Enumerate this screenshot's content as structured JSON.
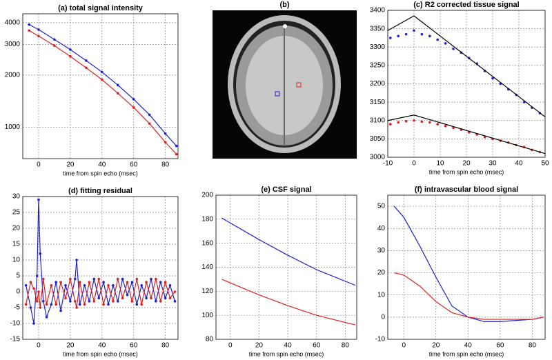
{
  "chart_data": [
    {
      "type": "line",
      "title": "(a) total signal intensity",
      "xlabel": "time from spin echo (msec)",
      "yscale": "log",
      "grid": true,
      "xlim": [
        -10,
        88
      ],
      "xticks": [
        0,
        20,
        40,
        60,
        80
      ],
      "ylim": [
        660,
        4500
      ],
      "yticks": [
        1000,
        2000,
        3000,
        4000
      ],
      "x": [
        -6,
        0,
        10,
        20,
        30,
        40,
        50,
        60,
        70,
        80,
        87
      ],
      "series": [
        {
          "color": "#1f1fd0",
          "markers": true,
          "values": [
            3900,
            3650,
            3200,
            2800,
            2420,
            2080,
            1750,
            1450,
            1180,
            920,
            780
          ]
        },
        {
          "color": "#e02020",
          "markers": true,
          "values": [
            3600,
            3350,
            2950,
            2560,
            2200,
            1880,
            1570,
            1300,
            1050,
            820,
            700
          ]
        }
      ]
    },
    {
      "type": "image",
      "title": "(b)"
    },
    {
      "type": "line",
      "title": "(c) R2 corrected tissue signal",
      "xlabel": "time from spin echo (msec)",
      "grid": true,
      "xlim": [
        -10,
        50
      ],
      "xticks": [
        -10,
        0,
        10,
        20,
        30,
        40,
        50
      ],
      "ylim": [
        3000,
        3400
      ],
      "yticks": [
        3000,
        3050,
        3100,
        3150,
        3200,
        3250,
        3300,
        3350,
        3400
      ],
      "series": [
        {
          "color": "#1f1fd0",
          "markers": true,
          "line": false,
          "x": [
            -9,
            -6,
            -3,
            0,
            3,
            6,
            9,
            12,
            15,
            18,
            21,
            24,
            27,
            30,
            33,
            36,
            39,
            42,
            45,
            48
          ],
          "values": [
            3325,
            3330,
            3335,
            3345,
            3335,
            3330,
            3320,
            3310,
            3295,
            3285,
            3270,
            3255,
            3235,
            3215,
            3200,
            3185,
            3170,
            3150,
            3135,
            3120
          ]
        },
        {
          "color": "#e02020",
          "markers": true,
          "line": false,
          "x": [
            -9,
            -6,
            -3,
            0,
            3,
            6,
            9,
            12,
            15,
            18,
            21,
            24,
            27,
            30,
            33,
            36,
            39,
            42,
            45,
            48
          ],
          "values": [
            3090,
            3095,
            3098,
            3100,
            3097,
            3095,
            3090,
            3085,
            3080,
            3075,
            3068,
            3062,
            3055,
            3050,
            3045,
            3040,
            3033,
            3028,
            3020,
            3014
          ]
        },
        {
          "color": "#000000",
          "x": [
            -10,
            0,
            50
          ],
          "values": [
            3345,
            3385,
            3110
          ]
        },
        {
          "color": "#000000",
          "x": [
            -10,
            0,
            50
          ],
          "values": [
            3100,
            3115,
            3010
          ]
        }
      ]
    },
    {
      "type": "line",
      "title": "(d) fitting residual",
      "xlabel": "time from spin echo (msec)",
      "grid": true,
      "xlim": [
        -10,
        88
      ],
      "xticks": [
        0,
        20,
        40,
        60,
        80
      ],
      "ylim": [
        -15,
        30
      ],
      "yticks": [
        -15,
        -10,
        -5,
        0,
        5,
        10,
        15,
        20,
        25,
        30
      ],
      "x": [
        -8,
        -5,
        -3,
        -1,
        0,
        1,
        3,
        5,
        8,
        11,
        14,
        17,
        20,
        23,
        24,
        26,
        29,
        32,
        35,
        38,
        41,
        44,
        47,
        50,
        53,
        56,
        59,
        62,
        65,
        68,
        71,
        74,
        77,
        80,
        83,
        86
      ],
      "series": [
        {
          "color": "#1f1fd0",
          "markers": true,
          "values": [
            2,
            -5,
            -10,
            5,
            29,
            12,
            -3,
            -8,
            -4,
            3,
            -6,
            2,
            -3,
            4,
            10,
            -4,
            2,
            -3,
            4,
            -2,
            3,
            -4,
            2,
            -3,
            4,
            -1,
            3,
            -4,
            2,
            -2,
            4,
            -3,
            3,
            -2,
            2,
            -3
          ]
        },
        {
          "color": "#e02020",
          "markers": true,
          "values": [
            -4,
            3,
            1,
            -3,
            0,
            -5,
            4,
            -4,
            2,
            -4,
            3,
            -2,
            4,
            -3,
            -5,
            3,
            -4,
            3,
            -3,
            4,
            -4,
            2,
            -3,
            4,
            -2,
            3,
            -3,
            4,
            -4,
            3,
            -2,
            4,
            -3,
            3,
            -2,
            0
          ]
        }
      ]
    },
    {
      "type": "line",
      "title": "(e) CSF signal",
      "xlabel": "time from spin echo (msec)",
      "grid": true,
      "xlim": [
        -10,
        88
      ],
      "xticks": [
        0,
        20,
        40,
        60,
        80
      ],
      "ylim": [
        80,
        200
      ],
      "yticks": [
        80,
        100,
        120,
        140,
        160,
        180,
        200
      ],
      "x": [
        -6,
        20,
        40,
        60,
        87
      ],
      "series": [
        {
          "color": "#1f1fd0",
          "values": [
            181,
            163,
            150,
            138,
            125
          ]
        },
        {
          "color": "#e02020",
          "values": [
            130,
            117,
            108,
            100,
            92
          ]
        }
      ]
    },
    {
      "type": "line",
      "title": "(f) intravascular blood signal",
      "xlabel": "time from spin echo (msec)",
      "grid": true,
      "xlim": [
        -10,
        88
      ],
      "xticks": [
        0,
        20,
        40,
        60,
        80
      ],
      "ylim": [
        -10,
        55
      ],
      "yticks": [
        -10,
        0,
        10,
        20,
        30,
        40,
        50
      ],
      "x": [
        -6,
        0,
        10,
        20,
        30,
        40,
        50,
        60,
        80,
        87
      ],
      "series": [
        {
          "color": "#1f1fd0",
          "values": [
            50,
            45,
            32,
            18,
            5,
            0,
            -2,
            -2,
            -1,
            0
          ]
        },
        {
          "color": "#e02020",
          "values": [
            20,
            19,
            14,
            7,
            2,
            0,
            -1,
            -1,
            -1,
            0
          ]
        }
      ]
    }
  ]
}
